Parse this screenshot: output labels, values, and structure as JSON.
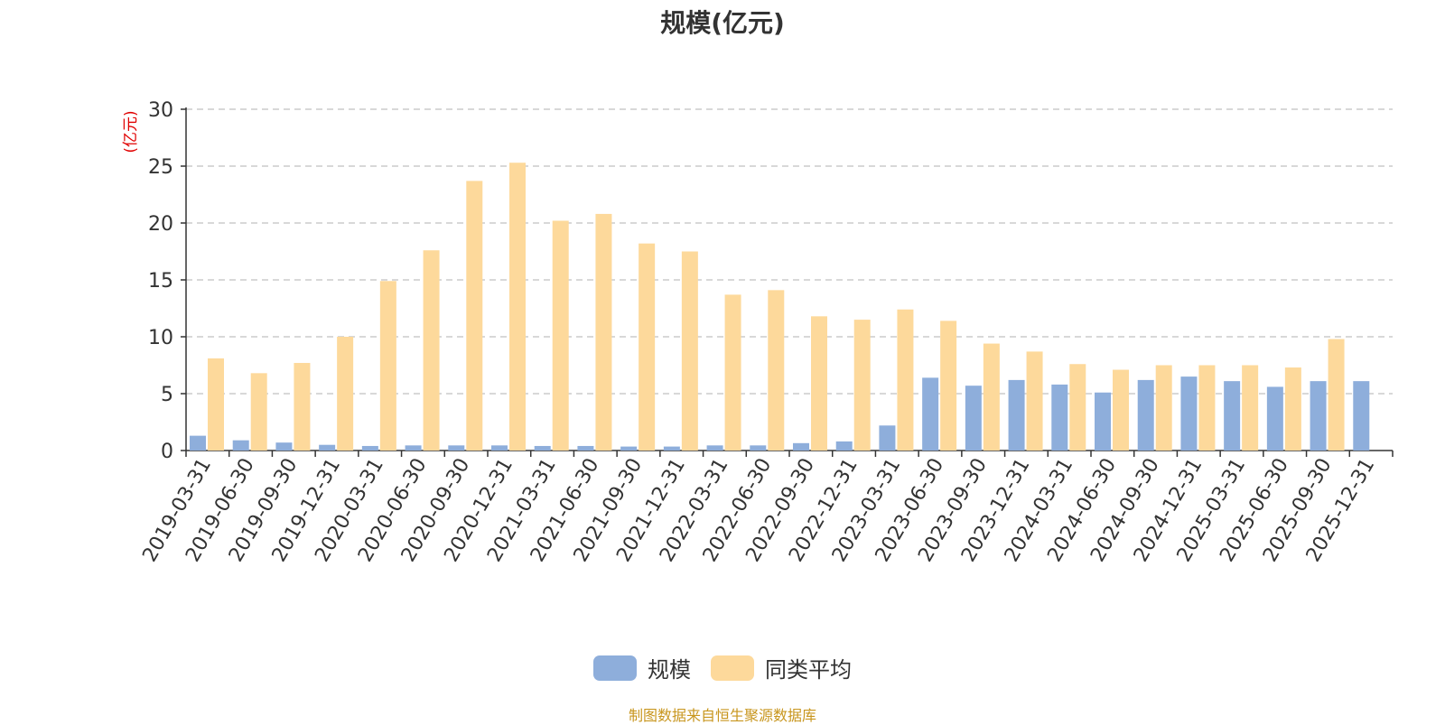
{
  "chart_data": {
    "type": "bar",
    "title": "规模(亿元)",
    "ylabel": "(亿元)",
    "ylim": [
      0,
      30
    ],
    "yticks": [
      0,
      5,
      10,
      15,
      20,
      25,
      30
    ],
    "grid": true,
    "legend_position": "bottom-center",
    "categories": [
      "2019-03-31",
      "2019-06-30",
      "2019-09-30",
      "2019-12-31",
      "2020-03-31",
      "2020-06-30",
      "2020-09-30",
      "2020-12-31",
      "2021-03-31",
      "2021-06-30",
      "2021-09-30",
      "2021-12-31",
      "2022-03-31",
      "2022-06-30",
      "2022-09-30",
      "2022-12-31",
      "2023-03-31",
      "2023-06-30",
      "2023-09-30",
      "2023-12-31",
      "2024-03-31",
      "2024-06-30",
      "2024-09-30",
      "2024-12-31",
      "2025-03-31",
      "2025-06-30",
      "2025-09-30",
      "2025-12-31"
    ],
    "series": [
      {
        "name": "规模",
        "color": "#8eaedb",
        "values": [
          1.3,
          0.9,
          0.7,
          0.5,
          0.4,
          0.45,
          0.45,
          0.45,
          0.4,
          0.4,
          0.35,
          0.35,
          0.45,
          0.45,
          0.65,
          0.8,
          2.2,
          6.4,
          5.7,
          6.2,
          5.8,
          5.1,
          6.2,
          6.5,
          6.1,
          5.6,
          6.1,
          6.1
        ]
      },
      {
        "name": "同类平均",
        "color": "#fdd99b",
        "values": [
          8.1,
          6.8,
          7.7,
          10.0,
          14.9,
          17.6,
          23.7,
          25.3,
          20.2,
          20.8,
          18.2,
          17.5,
          13.7,
          14.1,
          11.8,
          11.5,
          12.4,
          11.4,
          9.4,
          8.7,
          7.6,
          7.1,
          7.5,
          7.5,
          7.5,
          7.3,
          9.8,
          null
        ]
      }
    ]
  },
  "source_note": "制图数据来自恒生聚源数据库",
  "colors": {
    "axis": "#333333",
    "grid": "#cccccc",
    "ylabel": "#e00000"
  }
}
